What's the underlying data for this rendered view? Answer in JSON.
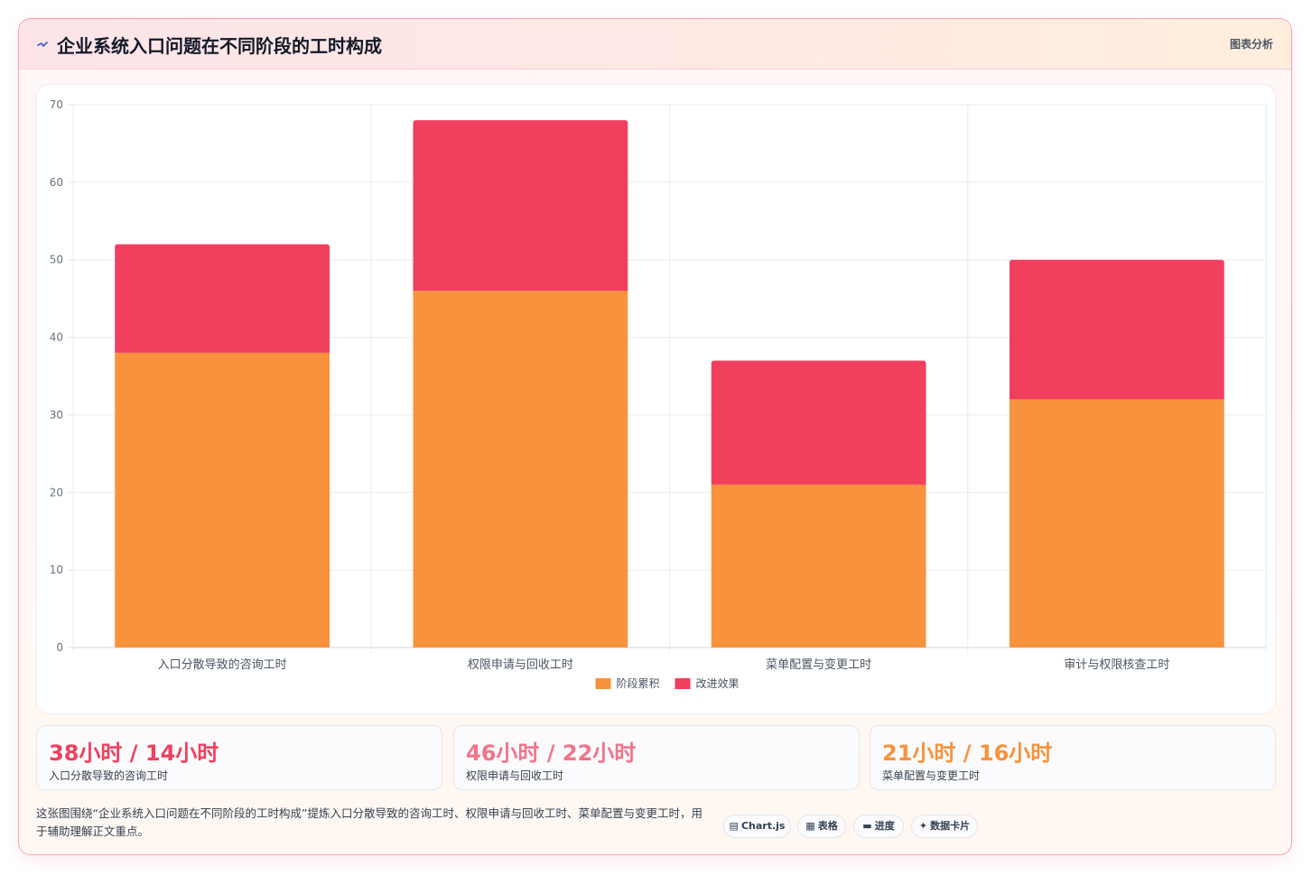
{
  "header": {
    "title": "企业系统入口问题在不同阶段的工时构成",
    "tag": "图表分析"
  },
  "chart_data": {
    "type": "bar",
    "stacked": true,
    "categories": [
      "入口分散导致的咨询工时",
      "权限申请与回收工时",
      "菜单配置与变更工时",
      "审计与权限核查工时"
    ],
    "series": [
      {
        "name": "阶段累积",
        "values": [
          38,
          46,
          21,
          32
        ],
        "color": "#f8923d"
      },
      {
        "name": "改进效果",
        "values": [
          14,
          22,
          16,
          18
        ],
        "color": "#f13f5e"
      }
    ],
    "ylim": [
      0,
      70
    ],
    "yticks": [
      0,
      10,
      20,
      30,
      40,
      50,
      60,
      70
    ],
    "grid": true,
    "legend_position": "bottom"
  },
  "kpis": [
    {
      "value": "38小时 / 14小时",
      "label": "入口分散导致的咨询工时",
      "color": "#f13f5e"
    },
    {
      "value": "46小时 / 22小时",
      "label": "权限申请与回收工时",
      "color": "#f2748a"
    },
    {
      "value": "21小时 / 16小时",
      "label": "菜单配置与变更工时",
      "color": "#f8923d"
    }
  ],
  "description": "这张图围绕“企业系统入口问题在不同阶段的工时构成”提炼入口分散导致的咨询工时、权限申请与回收工时、菜单配置与变更工时，用于辅助理解正文重点。",
  "chips": [
    {
      "icon": "▤",
      "label": "Chart.js",
      "icon_name": "chart-icon"
    },
    {
      "icon": "▦",
      "label": "表格",
      "icon_name": "table-icon"
    },
    {
      "icon": "▬",
      "label": "进度",
      "icon_name": "progress-icon"
    },
    {
      "icon": "✦",
      "label": "数据卡片",
      "icon_name": "sparkle-icon"
    }
  ]
}
